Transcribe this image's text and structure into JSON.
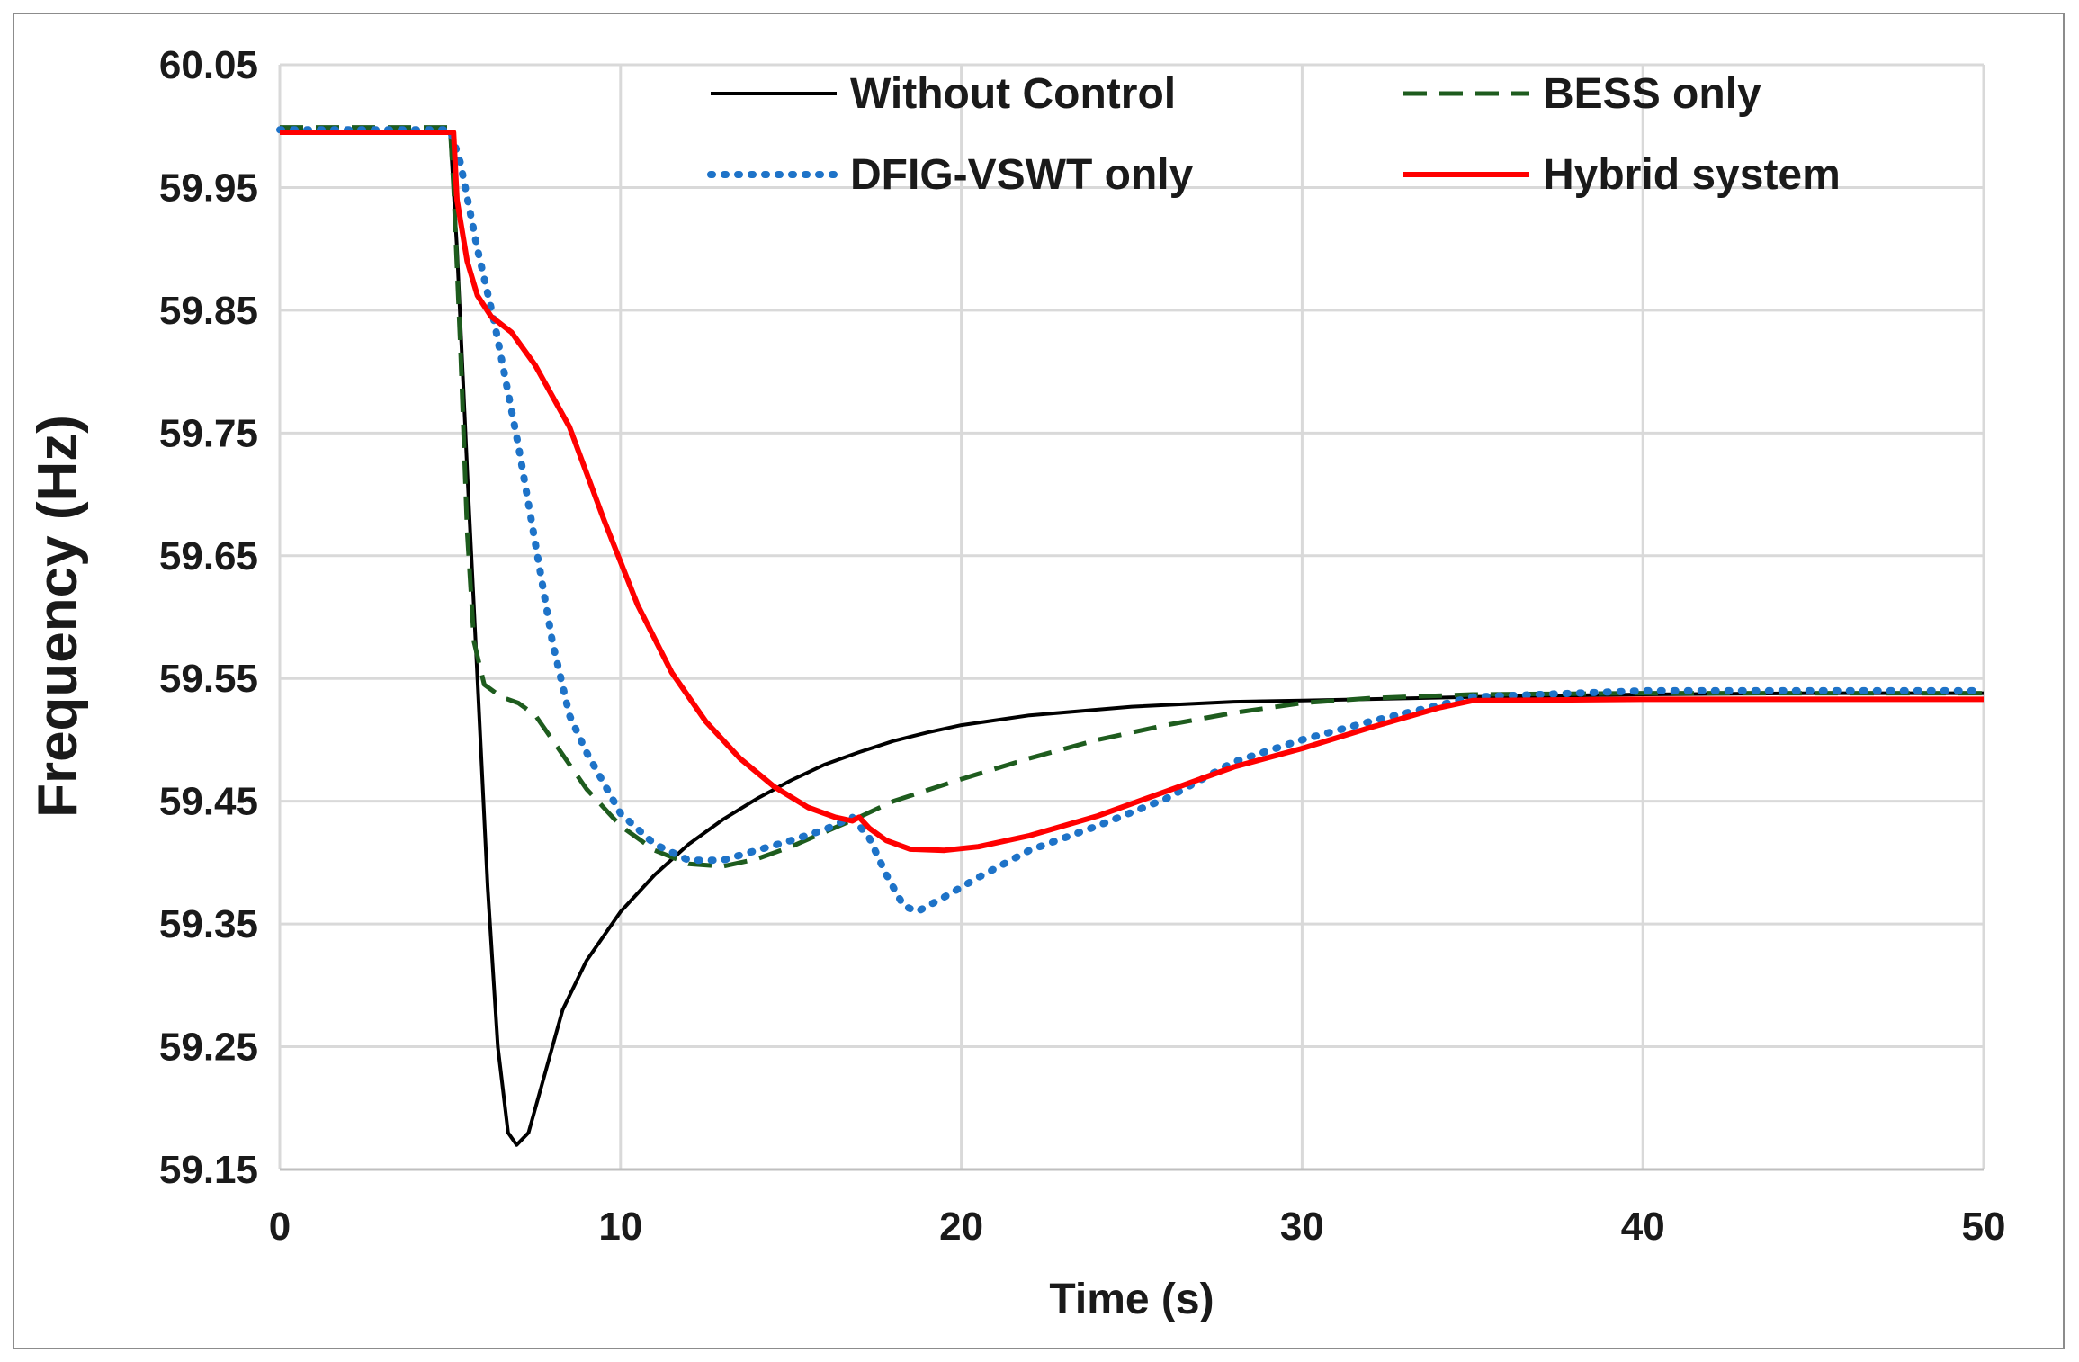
{
  "chart_data": {
    "type": "line",
    "title": "",
    "xlabel": "Time (s)",
    "ylabel": "Frequency (Hz)",
    "xlim": [
      0,
      50
    ],
    "ylim": [
      59.15,
      60.05
    ],
    "x_ticks": [
      0,
      10,
      20,
      30,
      40,
      50
    ],
    "x_tick_labels": [
      "0",
      "10",
      "20",
      "30",
      "40",
      "50"
    ],
    "y_ticks": [
      60.05,
      59.95,
      59.85,
      59.75,
      59.65,
      59.55,
      59.45,
      59.35,
      59.25,
      59.15
    ],
    "y_tick_labels": [
      "60.05",
      "59.95",
      "59.85",
      "59.75",
      "59.65",
      "59.55",
      "59.45",
      "59.35",
      "59.25",
      "59.15"
    ],
    "grid": true,
    "legend_position": "top-right",
    "series": [
      {
        "name": "Without Control",
        "color": "#000000",
        "style": "solid",
        "points": [
          [
            0,
            59.995
          ],
          [
            5.0,
            59.995
          ],
          [
            5.2,
            59.9
          ],
          [
            5.5,
            59.72
          ],
          [
            5.8,
            59.55
          ],
          [
            6.1,
            59.38
          ],
          [
            6.4,
            59.25
          ],
          [
            6.7,
            59.18
          ],
          [
            6.95,
            59.17
          ],
          [
            7.3,
            59.18
          ],
          [
            7.7,
            59.22
          ],
          [
            8.3,
            59.28
          ],
          [
            9.0,
            59.32
          ],
          [
            10,
            59.36
          ],
          [
            11,
            59.39
          ],
          [
            12,
            59.415
          ],
          [
            13,
            59.435
          ],
          [
            14,
            59.452
          ],
          [
            15,
            59.467
          ],
          [
            16,
            59.48
          ],
          [
            17,
            59.49
          ],
          [
            18,
            59.499
          ],
          [
            19,
            59.506
          ],
          [
            20,
            59.512
          ],
          [
            22,
            59.52
          ],
          [
            25,
            59.527
          ],
          [
            28,
            59.531
          ],
          [
            30,
            59.532
          ],
          [
            35,
            59.535
          ],
          [
            40,
            59.537
          ],
          [
            45,
            59.538
          ],
          [
            50,
            59.538
          ]
        ]
      },
      {
        "name": "BESS only",
        "color": "#1e5c1e",
        "style": "dashed",
        "points": [
          [
            0,
            59.999
          ],
          [
            5.0,
            59.999
          ],
          [
            5.1,
            59.95
          ],
          [
            5.3,
            59.82
          ],
          [
            5.5,
            59.67
          ],
          [
            5.7,
            59.58
          ],
          [
            6.0,
            59.545
          ],
          [
            6.5,
            59.535
          ],
          [
            7.0,
            59.53
          ],
          [
            7.5,
            59.52
          ],
          [
            8.0,
            59.5
          ],
          [
            9.0,
            59.46
          ],
          [
            10,
            59.43
          ],
          [
            11,
            59.41
          ],
          [
            12,
            59.399
          ],
          [
            13,
            59.397
          ],
          [
            14,
            59.403
          ],
          [
            15,
            59.413
          ],
          [
            16,
            59.425
          ],
          [
            17,
            59.437
          ],
          [
            18,
            59.45
          ],
          [
            20,
            59.468
          ],
          [
            22,
            59.485
          ],
          [
            24,
            59.5
          ],
          [
            26,
            59.512
          ],
          [
            28,
            59.522
          ],
          [
            30,
            59.53
          ],
          [
            32,
            59.534
          ],
          [
            35,
            59.537
          ],
          [
            40,
            59.538
          ],
          [
            45,
            59.538
          ],
          [
            50,
            59.538
          ]
        ]
      },
      {
        "name": "DFIG-VSWT only",
        "color": "#1e73c8",
        "style": "dotted",
        "points": [
          [
            0,
            59.997
          ],
          [
            5.0,
            59.997
          ],
          [
            5.3,
            59.97
          ],
          [
            5.8,
            59.9
          ],
          [
            6.3,
            59.84
          ],
          [
            7.0,
            59.74
          ],
          [
            7.5,
            59.66
          ],
          [
            8.0,
            59.58
          ],
          [
            8.5,
            59.52
          ],
          [
            9.0,
            59.49
          ],
          [
            9.5,
            59.465
          ],
          [
            10,
            59.44
          ],
          [
            11,
            59.415
          ],
          [
            12,
            59.402
          ],
          [
            13,
            59.402
          ],
          [
            14,
            59.41
          ],
          [
            15,
            59.418
          ],
          [
            16,
            59.427
          ],
          [
            16.8,
            59.437
          ],
          [
            17.3,
            59.42
          ],
          [
            17.8,
            59.39
          ],
          [
            18.3,
            59.365
          ],
          [
            18.7,
            59.36
          ],
          [
            19.5,
            59.372
          ],
          [
            20.5,
            59.388
          ],
          [
            22,
            59.41
          ],
          [
            24,
            59.43
          ],
          [
            26,
            59.452
          ],
          [
            28,
            59.482
          ],
          [
            30,
            59.5
          ],
          [
            32,
            59.515
          ],
          [
            34,
            59.528
          ],
          [
            35,
            59.535
          ],
          [
            40,
            59.54
          ],
          [
            45,
            59.54
          ],
          [
            50,
            59.54
          ]
        ]
      },
      {
        "name": "Hybrid system",
        "color": "#ff0000",
        "style": "solid",
        "points": [
          [
            0,
            59.995
          ],
          [
            5.1,
            59.995
          ],
          [
            5.2,
            59.94
          ],
          [
            5.5,
            59.89
          ],
          [
            5.8,
            59.862
          ],
          [
            6.2,
            59.845
          ],
          [
            6.8,
            59.832
          ],
          [
            7.5,
            59.805
          ],
          [
            8.5,
            59.755
          ],
          [
            9.5,
            59.68
          ],
          [
            10.5,
            59.61
          ],
          [
            11.5,
            59.555
          ],
          [
            12.5,
            59.515
          ],
          [
            13.5,
            59.485
          ],
          [
            14.5,
            59.462
          ],
          [
            15.5,
            59.445
          ],
          [
            16.3,
            59.437
          ],
          [
            16.8,
            59.434
          ],
          [
            17.0,
            59.437
          ],
          [
            17.3,
            59.428
          ],
          [
            17.8,
            59.418
          ],
          [
            18.5,
            59.411
          ],
          [
            19.5,
            59.41
          ],
          [
            20.5,
            59.413
          ],
          [
            22,
            59.422
          ],
          [
            24,
            59.438
          ],
          [
            26,
            59.458
          ],
          [
            28,
            59.478
          ],
          [
            30,
            59.493
          ],
          [
            32,
            59.51
          ],
          [
            34,
            59.526
          ],
          [
            35,
            59.532
          ],
          [
            40,
            59.533
          ],
          [
            45,
            59.533
          ],
          [
            50,
            59.533
          ]
        ]
      }
    ]
  }
}
